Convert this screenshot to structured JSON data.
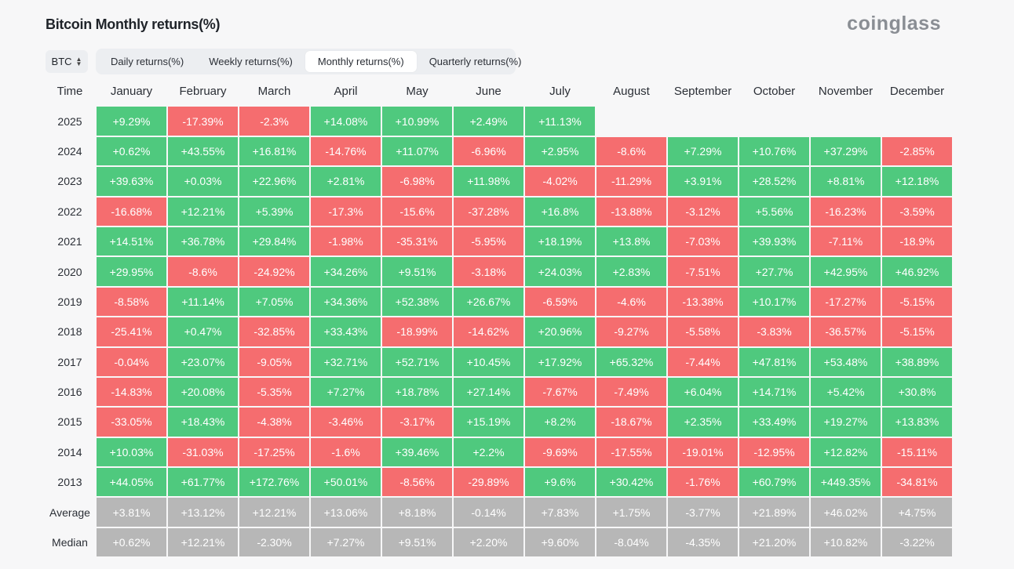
{
  "title": "Bitcoin Monthly returns(%)",
  "logo": "coinglass",
  "coin_select": {
    "value": "BTC"
  },
  "tabs": [
    {
      "label": "Daily returns(%)",
      "active": false
    },
    {
      "label": "Weekly returns(%)",
      "active": false
    },
    {
      "label": "Monthly returns(%)",
      "active": true
    },
    {
      "label": "Quarterly returns(%)",
      "active": false
    }
  ],
  "colors": {
    "positive": "#4fc97e",
    "negative": "#f56d6f",
    "stat": "#b7b7b7"
  },
  "table": {
    "headers": [
      "Time",
      "January",
      "February",
      "March",
      "April",
      "May",
      "June",
      "July",
      "August",
      "September",
      "October",
      "November",
      "December"
    ],
    "rows": [
      {
        "label": "2025",
        "type": "year",
        "values": [
          "+9.29%",
          "-17.39%",
          "-2.3%",
          "+14.08%",
          "+10.99%",
          "+2.49%",
          "+11.13%",
          "",
          "",
          "",
          "",
          ""
        ]
      },
      {
        "label": "2024",
        "type": "year",
        "values": [
          "+0.62%",
          "+43.55%",
          "+16.81%",
          "-14.76%",
          "+11.07%",
          "-6.96%",
          "+2.95%",
          "-8.6%",
          "+7.29%",
          "+10.76%",
          "+37.29%",
          "-2.85%"
        ]
      },
      {
        "label": "2023",
        "type": "year",
        "values": [
          "+39.63%",
          "+0.03%",
          "+22.96%",
          "+2.81%",
          "-6.98%",
          "+11.98%",
          "-4.02%",
          "-11.29%",
          "+3.91%",
          "+28.52%",
          "+8.81%",
          "+12.18%"
        ]
      },
      {
        "label": "2022",
        "type": "year",
        "values": [
          "-16.68%",
          "+12.21%",
          "+5.39%",
          "-17.3%",
          "-15.6%",
          "-37.28%",
          "+16.8%",
          "-13.88%",
          "-3.12%",
          "+5.56%",
          "-16.23%",
          "-3.59%"
        ]
      },
      {
        "label": "2021",
        "type": "year",
        "values": [
          "+14.51%",
          "+36.78%",
          "+29.84%",
          "-1.98%",
          "-35.31%",
          "-5.95%",
          "+18.19%",
          "+13.8%",
          "-7.03%",
          "+39.93%",
          "-7.11%",
          "-18.9%"
        ]
      },
      {
        "label": "2020",
        "type": "year",
        "values": [
          "+29.95%",
          "-8.6%",
          "-24.92%",
          "+34.26%",
          "+9.51%",
          "-3.18%",
          "+24.03%",
          "+2.83%",
          "-7.51%",
          "+27.7%",
          "+42.95%",
          "+46.92%"
        ]
      },
      {
        "label": "2019",
        "type": "year",
        "values": [
          "-8.58%",
          "+11.14%",
          "+7.05%",
          "+34.36%",
          "+52.38%",
          "+26.67%",
          "-6.59%",
          "-4.6%",
          "-13.38%",
          "+10.17%",
          "-17.27%",
          "-5.15%"
        ]
      },
      {
        "label": "2018",
        "type": "year",
        "values": [
          "-25.41%",
          "+0.47%",
          "-32.85%",
          "+33.43%",
          "-18.99%",
          "-14.62%",
          "+20.96%",
          "-9.27%",
          "-5.58%",
          "-3.83%",
          "-36.57%",
          "-5.15%"
        ]
      },
      {
        "label": "2017",
        "type": "year",
        "values": [
          "-0.04%",
          "+23.07%",
          "-9.05%",
          "+32.71%",
          "+52.71%",
          "+10.45%",
          "+17.92%",
          "+65.32%",
          "-7.44%",
          "+47.81%",
          "+53.48%",
          "+38.89%"
        ]
      },
      {
        "label": "2016",
        "type": "year",
        "values": [
          "-14.83%",
          "+20.08%",
          "-5.35%",
          "+7.27%",
          "+18.78%",
          "+27.14%",
          "-7.67%",
          "-7.49%",
          "+6.04%",
          "+14.71%",
          "+5.42%",
          "+30.8%"
        ]
      },
      {
        "label": "2015",
        "type": "year",
        "values": [
          "-33.05%",
          "+18.43%",
          "-4.38%",
          "-3.46%",
          "-3.17%",
          "+15.19%",
          "+8.2%",
          "-18.67%",
          "+2.35%",
          "+33.49%",
          "+19.27%",
          "+13.83%"
        ]
      },
      {
        "label": "2014",
        "type": "year",
        "values": [
          "+10.03%",
          "-31.03%",
          "-17.25%",
          "-1.6%",
          "+39.46%",
          "+2.2%",
          "-9.69%",
          "-17.55%",
          "-19.01%",
          "-12.95%",
          "+12.82%",
          "-15.11%"
        ]
      },
      {
        "label": "2013",
        "type": "year",
        "values": [
          "+44.05%",
          "+61.77%",
          "+172.76%",
          "+50.01%",
          "-8.56%",
          "-29.89%",
          "+9.6%",
          "+30.42%",
          "-1.76%",
          "+60.79%",
          "+449.35%",
          "-34.81%"
        ]
      },
      {
        "label": "Average",
        "type": "stat",
        "values": [
          "+3.81%",
          "+13.12%",
          "+12.21%",
          "+13.06%",
          "+8.18%",
          "-0.14%",
          "+7.83%",
          "+1.75%",
          "-3.77%",
          "+21.89%",
          "+46.02%",
          "+4.75%"
        ]
      },
      {
        "label": "Median",
        "type": "stat",
        "values": [
          "+0.62%",
          "+12.21%",
          "-2.30%",
          "+7.27%",
          "+9.51%",
          "+2.20%",
          "+9.60%",
          "-8.04%",
          "-4.35%",
          "+21.20%",
          "+10.82%",
          "-3.22%"
        ]
      }
    ]
  }
}
